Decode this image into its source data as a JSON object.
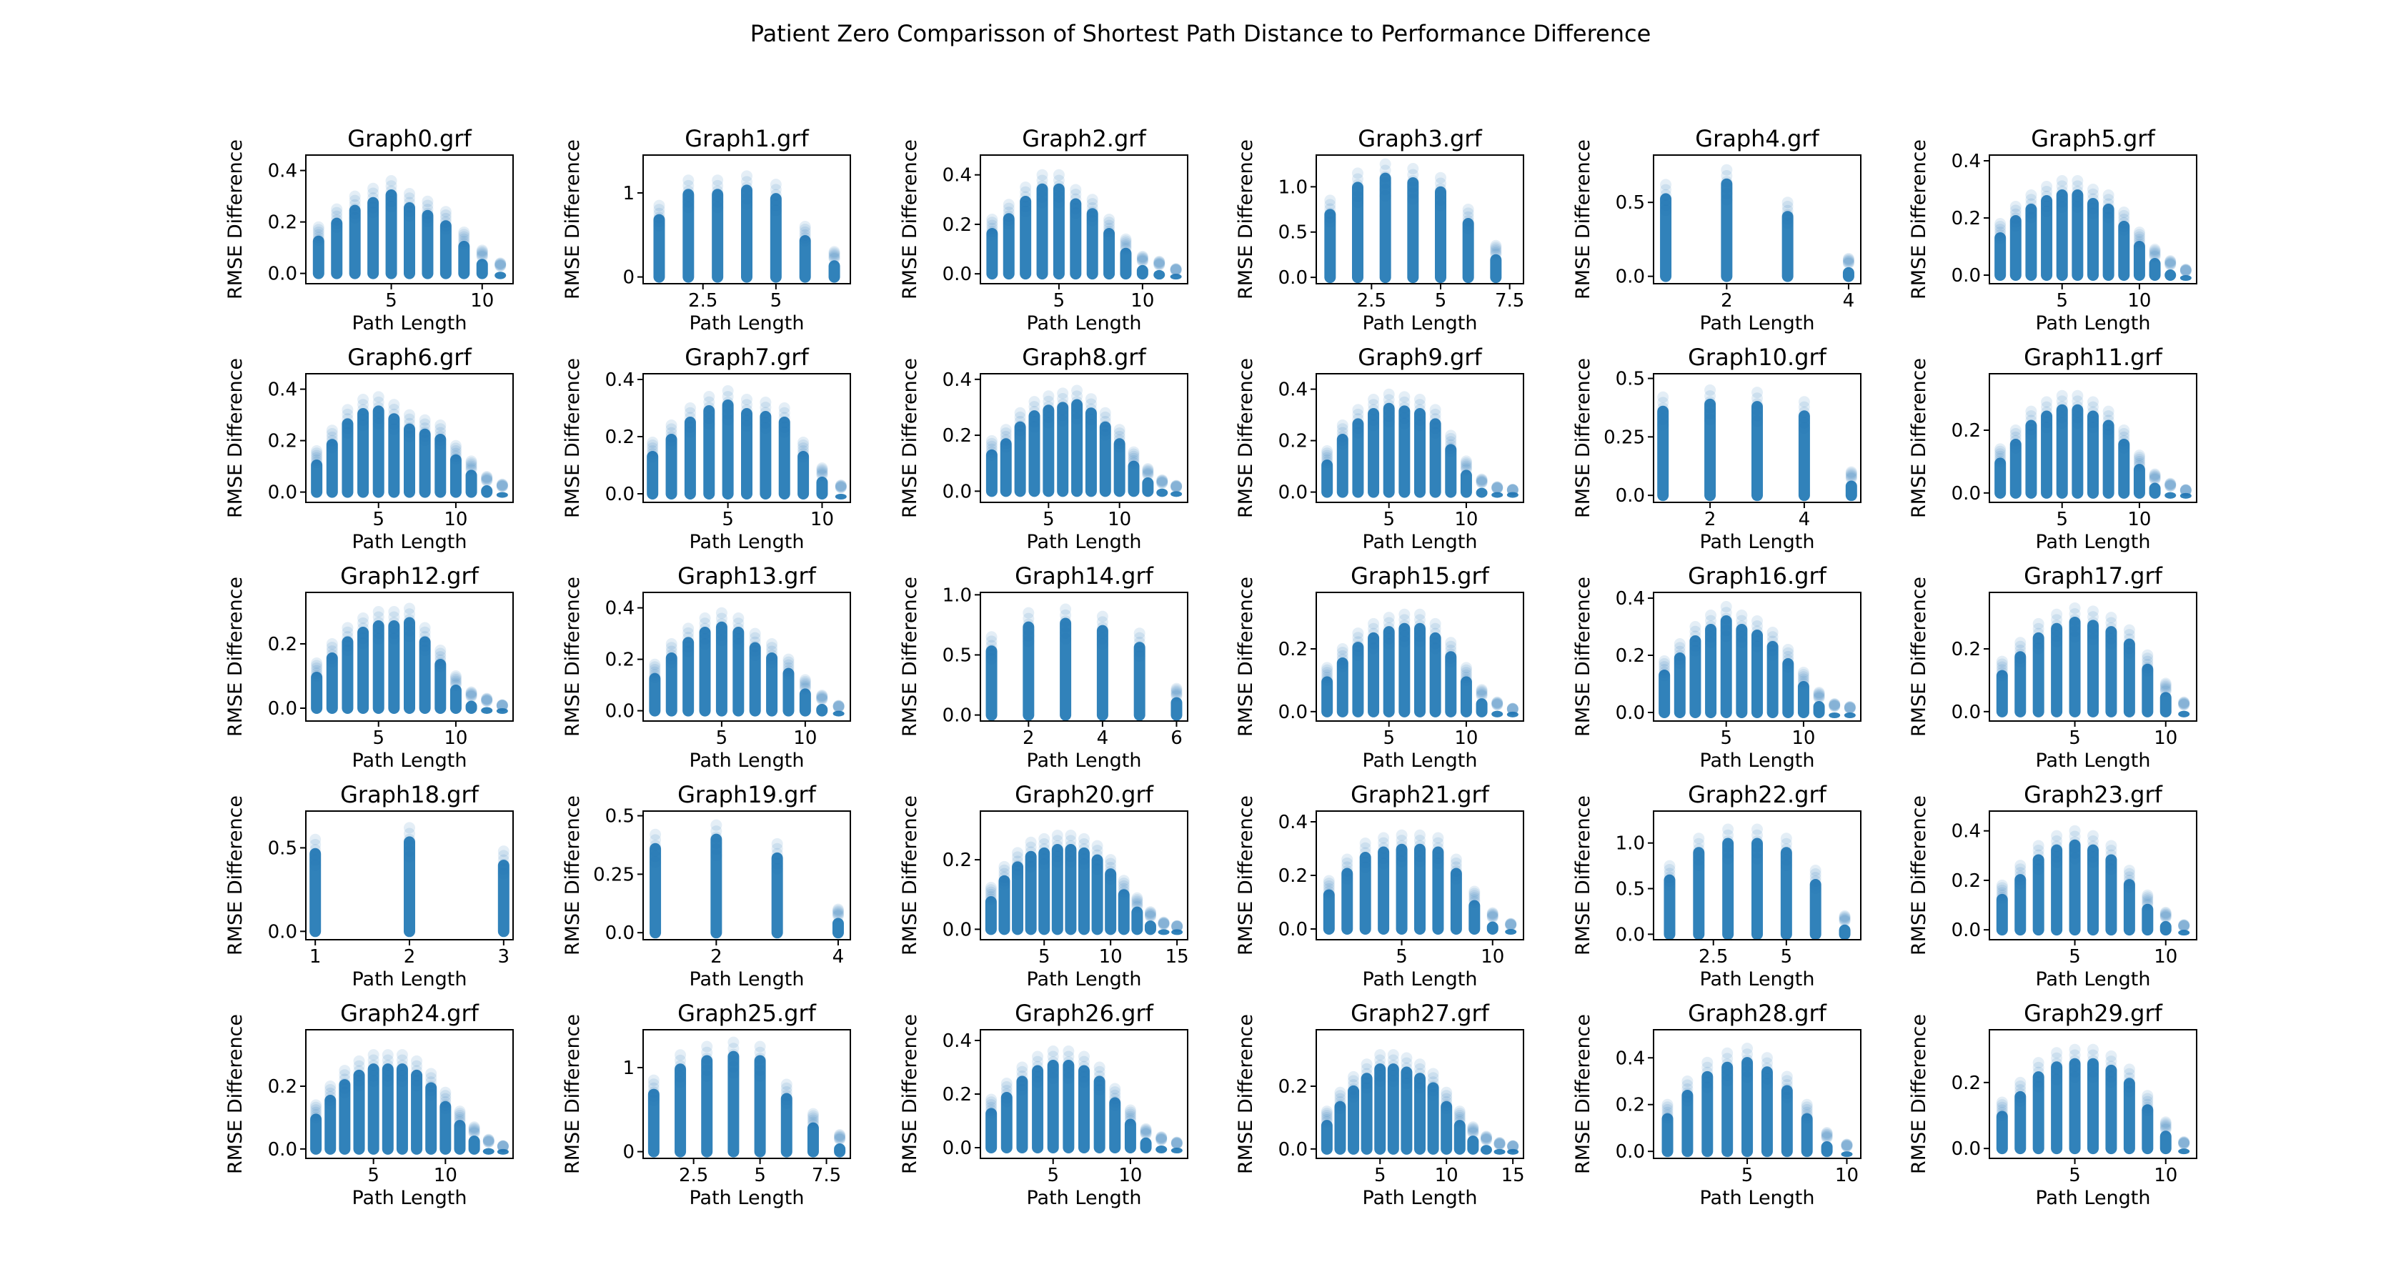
{
  "figure_title": "Patient Zero Comparisson of Shortest Path Distance to Performance Difference",
  "colors": {
    "marker": "#1f77b4",
    "axis": "#000000",
    "background": "#ffffff"
  },
  "chart_data": [
    {
      "type": "scatter",
      "title": "Graph0.grf",
      "xlabel": "Path Length",
      "ylabel": "RMSE Difference",
      "xlim": [
        0.3,
        11.7
      ],
      "ylim": [
        -0.04,
        0.46
      ],
      "xticks": [
        5,
        10
      ],
      "yticks": [
        0.0,
        0.2,
        0.4
      ],
      "x": [
        1,
        2,
        3,
        4,
        5,
        6,
        7,
        8,
        9,
        10,
        11
      ],
      "y_max": [
        0.18,
        0.25,
        0.3,
        0.33,
        0.36,
        0.31,
        0.28,
        0.24,
        0.16,
        0.09,
        0.04
      ]
    },
    {
      "type": "scatter",
      "title": "Graph1.grf",
      "xlabel": "Path Length",
      "ylabel": "RMSE Difference",
      "xlim": [
        0.45,
        7.55
      ],
      "ylim": [
        -0.08,
        1.45
      ],
      "xticks": [
        2.5,
        5.0
      ],
      "yticks": [
        0,
        1
      ],
      "x": [
        1,
        2,
        3,
        4,
        5,
        6,
        7
      ],
      "y_max": [
        0.85,
        1.15,
        1.15,
        1.2,
        1.1,
        0.6,
        0.3
      ]
    },
    {
      "type": "scatter",
      "title": "Graph2.grf",
      "xlabel": "Path Length",
      "ylabel": "RMSE Difference",
      "xlim": [
        0.3,
        12.7
      ],
      "ylim": [
        -0.04,
        0.48
      ],
      "xticks": [
        5,
        10
      ],
      "yticks": [
        0.0,
        0.2,
        0.4
      ],
      "x": [
        1,
        2,
        3,
        4,
        5,
        6,
        7,
        8,
        9,
        10,
        11,
        12
      ],
      "y_max": [
        0.22,
        0.28,
        0.35,
        0.4,
        0.4,
        0.34,
        0.3,
        0.22,
        0.14,
        0.07,
        0.05,
        0.02
      ]
    },
    {
      "type": "scatter",
      "title": "Graph3.grf",
      "xlabel": "Path Length",
      "ylabel": "RMSE Difference",
      "xlim": [
        0.5,
        8.0
      ],
      "ylim": [
        -0.07,
        1.35
      ],
      "xticks": [
        2.5,
        5.0,
        7.5
      ],
      "yticks": [
        0.0,
        0.5,
        1.0
      ],
      "x": [
        1,
        2,
        3,
        4,
        5,
        6,
        7
      ],
      "y_max": [
        0.85,
        1.15,
        1.25,
        1.2,
        1.1,
        0.75,
        0.35
      ]
    },
    {
      "type": "scatter",
      "title": "Graph4.grf",
      "xlabel": "Path Length",
      "ylabel": "RMSE Difference",
      "xlim": [
        0.8,
        4.2
      ],
      "ylim": [
        -0.05,
        0.82
      ],
      "xticks": [
        2,
        4
      ],
      "yticks": [
        0.0,
        0.5
      ],
      "x": [
        1,
        2,
        3,
        4
      ],
      "y_max": [
        0.62,
        0.72,
        0.5,
        0.12
      ]
    },
    {
      "type": "scatter",
      "title": "Graph5.grf",
      "xlabel": "Path Length",
      "ylabel": "RMSE Difference",
      "xlim": [
        0.3,
        13.7
      ],
      "ylim": [
        -0.03,
        0.42
      ],
      "xticks": [
        5,
        10
      ],
      "yticks": [
        0.0,
        0.2,
        0.4
      ],
      "x": [
        1,
        2,
        3,
        4,
        5,
        6,
        7,
        8,
        9,
        10,
        11,
        12,
        13
      ],
      "y_max": [
        0.18,
        0.24,
        0.28,
        0.31,
        0.33,
        0.33,
        0.3,
        0.28,
        0.22,
        0.15,
        0.09,
        0.05,
        0.02
      ]
    },
    {
      "type": "scatter",
      "title": "Graph6.grf",
      "xlabel": "Path Length",
      "ylabel": "RMSE Difference",
      "xlim": [
        0.3,
        13.7
      ],
      "ylim": [
        -0.04,
        0.46
      ],
      "xticks": [
        5,
        10
      ],
      "yticks": [
        0.0,
        0.2,
        0.4
      ],
      "x": [
        1,
        2,
        3,
        4,
        5,
        6,
        7,
        8,
        9,
        10,
        11,
        12,
        13
      ],
      "y_max": [
        0.16,
        0.24,
        0.32,
        0.36,
        0.37,
        0.34,
        0.3,
        0.28,
        0.26,
        0.18,
        0.12,
        0.06,
        0.03
      ]
    },
    {
      "type": "scatter",
      "title": "Graph7.grf",
      "xlabel": "Path Length",
      "ylabel": "RMSE Difference",
      "xlim": [
        0.5,
        11.5
      ],
      "ylim": [
        -0.03,
        0.42
      ],
      "xticks": [
        5,
        10
      ],
      "yticks": [
        0.0,
        0.2,
        0.4
      ],
      "x": [
        1,
        2,
        3,
        4,
        5,
        6,
        7,
        8,
        9,
        10,
        11
      ],
      "y_max": [
        0.18,
        0.24,
        0.3,
        0.34,
        0.36,
        0.33,
        0.32,
        0.3,
        0.18,
        0.09,
        0.03
      ]
    },
    {
      "type": "scatter",
      "title": "Graph8.grf",
      "xlabel": "Path Length",
      "ylabel": "RMSE Difference",
      "xlim": [
        0.2,
        14.8
      ],
      "ylim": [
        -0.04,
        0.42
      ],
      "xticks": [
        5,
        10
      ],
      "yticks": [
        0.0,
        0.2,
        0.4
      ],
      "x": [
        1,
        2,
        3,
        4,
        5,
        6,
        7,
        8,
        9,
        10,
        11,
        12,
        13,
        14
      ],
      "y_max": [
        0.18,
        0.22,
        0.28,
        0.32,
        0.34,
        0.35,
        0.36,
        0.33,
        0.28,
        0.22,
        0.14,
        0.08,
        0.04,
        0.02
      ]
    },
    {
      "type": "scatter",
      "title": "Graph9.grf",
      "xlabel": "Path Length",
      "ylabel": "RMSE Difference",
      "xlim": [
        0.3,
        13.7
      ],
      "ylim": [
        -0.04,
        0.46
      ],
      "xticks": [
        5,
        10
      ],
      "yticks": [
        0.0,
        0.2,
        0.4
      ],
      "x": [
        1,
        2,
        3,
        4,
        5,
        6,
        7,
        8,
        9,
        10,
        11,
        12,
        13
      ],
      "y_max": [
        0.16,
        0.26,
        0.32,
        0.36,
        0.38,
        0.37,
        0.36,
        0.32,
        0.22,
        0.12,
        0.05,
        0.02,
        0.01
      ]
    },
    {
      "type": "scatter",
      "title": "Graph10.grf",
      "xlabel": "Path Length",
      "ylabel": "RMSE Difference",
      "xlim": [
        0.8,
        5.2
      ],
      "ylim": [
        -0.03,
        0.52
      ],
      "xticks": [
        2,
        4
      ],
      "yticks": [
        0.0,
        0.25,
        0.5
      ],
      "x": [
        1,
        2,
        3,
        4,
        5
      ],
      "y_max": [
        0.42,
        0.45,
        0.44,
        0.4,
        0.1
      ]
    },
    {
      "type": "scatter",
      "title": "Graph11.grf",
      "xlabel": "Path Length",
      "ylabel": "RMSE Difference",
      "xlim": [
        0.3,
        13.7
      ],
      "ylim": [
        -0.03,
        0.38
      ],
      "xticks": [
        5,
        10
      ],
      "yticks": [
        0.0,
        0.2
      ],
      "x": [
        1,
        2,
        3,
        4,
        5,
        6,
        7,
        8,
        9,
        10,
        11,
        12,
        13
      ],
      "y_max": [
        0.14,
        0.2,
        0.26,
        0.29,
        0.31,
        0.31,
        0.29,
        0.26,
        0.2,
        0.12,
        0.06,
        0.03,
        0.01
      ]
    },
    {
      "type": "scatter",
      "title": "Graph12.grf",
      "xlabel": "Path Length",
      "ylabel": "RMSE Difference",
      "xlim": [
        0.3,
        13.7
      ],
      "ylim": [
        -0.04,
        0.36
      ],
      "xticks": [
        5,
        10
      ],
      "yticks": [
        0.0,
        0.2
      ],
      "x": [
        1,
        2,
        3,
        4,
        5,
        6,
        7,
        8,
        9,
        10,
        11,
        12,
        13
      ],
      "y_max": [
        0.14,
        0.2,
        0.25,
        0.28,
        0.3,
        0.3,
        0.31,
        0.25,
        0.18,
        0.1,
        0.05,
        0.03,
        0.01
      ]
    },
    {
      "type": "scatter",
      "title": "Graph13.grf",
      "xlabel": "Path Length",
      "ylabel": "RMSE Difference",
      "xlim": [
        0.3,
        12.7
      ],
      "ylim": [
        -0.04,
        0.46
      ],
      "xticks": [
        5,
        10
      ],
      "yticks": [
        0.0,
        0.2,
        0.4
      ],
      "x": [
        1,
        2,
        3,
        4,
        5,
        6,
        7,
        8,
        9,
        10,
        11,
        12
      ],
      "y_max": [
        0.18,
        0.26,
        0.32,
        0.36,
        0.38,
        0.36,
        0.3,
        0.26,
        0.2,
        0.12,
        0.06,
        0.02
      ]
    },
    {
      "type": "scatter",
      "title": "Graph14.grf",
      "xlabel": "Path Length",
      "ylabel": "RMSE Difference",
      "xlim": [
        0.7,
        6.3
      ],
      "ylim": [
        -0.05,
        1.02
      ],
      "xticks": [
        2,
        4,
        6
      ],
      "yticks": [
        0.0,
        0.5,
        1.0
      ],
      "x": [
        1,
        2,
        3,
        4,
        5,
        6
      ],
      "y_max": [
        0.65,
        0.85,
        0.88,
        0.82,
        0.68,
        0.22
      ]
    },
    {
      "type": "scatter",
      "title": "Graph15.grf",
      "xlabel": "Path Length",
      "ylabel": "RMSE Difference",
      "xlim": [
        0.3,
        13.7
      ],
      "ylim": [
        -0.03,
        0.38
      ],
      "xticks": [
        5,
        10
      ],
      "yticks": [
        0.0,
        0.2
      ],
      "x": [
        1,
        2,
        3,
        4,
        5,
        6,
        7,
        8,
        9,
        10,
        11,
        12,
        13
      ],
      "y_max": [
        0.14,
        0.2,
        0.25,
        0.28,
        0.3,
        0.31,
        0.31,
        0.28,
        0.22,
        0.14,
        0.07,
        0.03,
        0.01
      ]
    },
    {
      "type": "scatter",
      "title": "Graph16.grf",
      "xlabel": "Path Length",
      "ylabel": "RMSE Difference",
      "xlim": [
        0.3,
        13.7
      ],
      "ylim": [
        -0.03,
        0.42
      ],
      "xticks": [
        5,
        10
      ],
      "yticks": [
        0.0,
        0.2,
        0.4
      ],
      "x": [
        1,
        2,
        3,
        4,
        5,
        6,
        7,
        8,
        9,
        10,
        11,
        12,
        13
      ],
      "y_max": [
        0.18,
        0.24,
        0.3,
        0.34,
        0.37,
        0.34,
        0.32,
        0.28,
        0.22,
        0.14,
        0.07,
        0.03,
        0.02
      ]
    },
    {
      "type": "scatter",
      "title": "Graph17.grf",
      "xlabel": "Path Length",
      "ylabel": "RMSE Difference",
      "xlim": [
        0.3,
        11.7
      ],
      "ylim": [
        -0.03,
        0.38
      ],
      "xticks": [
        5,
        10
      ],
      "yticks": [
        0.0,
        0.2
      ],
      "x": [
        1,
        2,
        3,
        4,
        5,
        6,
        7,
        8,
        9,
        10,
        11
      ],
      "y_max": [
        0.16,
        0.22,
        0.28,
        0.31,
        0.33,
        0.32,
        0.3,
        0.26,
        0.18,
        0.09,
        0.03
      ]
    },
    {
      "type": "scatter",
      "title": "Graph18.grf",
      "xlabel": "Path Length",
      "ylabel": "RMSE Difference",
      "xlim": [
        0.9,
        3.1
      ],
      "ylim": [
        -0.05,
        0.72
      ],
      "xticks": [
        1,
        2,
        3
      ],
      "yticks": [
        0.0,
        0.5
      ],
      "x": [
        1,
        2,
        3
      ],
      "y_max": [
        0.55,
        0.62,
        0.48
      ]
    },
    {
      "type": "scatter",
      "title": "Graph19.grf",
      "xlabel": "Path Length",
      "ylabel": "RMSE Difference",
      "xlim": [
        0.8,
        4.2
      ],
      "ylim": [
        -0.03,
        0.52
      ],
      "xticks": [
        2,
        4
      ],
      "yticks": [
        0.0,
        0.25,
        0.5
      ],
      "x": [
        1,
        2,
        3,
        4
      ],
      "y_max": [
        0.42,
        0.46,
        0.38,
        0.1
      ]
    },
    {
      "type": "scatter",
      "title": "Graph20.grf",
      "xlabel": "Path Length",
      "ylabel": "RMSE Difference",
      "xlim": [
        0.2,
        15.8
      ],
      "ylim": [
        -0.03,
        0.34
      ],
      "xticks": [
        5,
        10,
        15
      ],
      "yticks": [
        0.0,
        0.2
      ],
      "x": [
        1,
        2,
        3,
        4,
        5,
        6,
        7,
        8,
        9,
        10,
        11,
        12,
        13,
        14,
        15
      ],
      "y_max": [
        0.12,
        0.18,
        0.22,
        0.25,
        0.26,
        0.27,
        0.27,
        0.26,
        0.24,
        0.2,
        0.14,
        0.09,
        0.05,
        0.02,
        0.01
      ]
    },
    {
      "type": "scatter",
      "title": "Graph21.grf",
      "xlabel": "Path Length",
      "ylabel": "RMSE Difference",
      "xlim": [
        0.3,
        11.7
      ],
      "ylim": [
        -0.04,
        0.44
      ],
      "xticks": [
        5,
        10
      ],
      "yticks": [
        0.0,
        0.2,
        0.4
      ],
      "x": [
        1,
        2,
        3,
        4,
        5,
        6,
        7,
        8,
        9,
        10,
        11
      ],
      "y_max": [
        0.18,
        0.26,
        0.32,
        0.34,
        0.35,
        0.35,
        0.34,
        0.26,
        0.14,
        0.06,
        0.02
      ]
    },
    {
      "type": "scatter",
      "title": "Graph22.grf",
      "xlabel": "Path Length",
      "ylabel": "RMSE Difference",
      "xlim": [
        0.45,
        7.55
      ],
      "ylim": [
        -0.06,
        1.35
      ],
      "xticks": [
        2.5,
        5.0
      ],
      "yticks": [
        0.0,
        0.5,
        1.0
      ],
      "x": [
        1,
        2,
        3,
        4,
        5,
        6,
        7
      ],
      "y_max": [
        0.75,
        1.05,
        1.15,
        1.15,
        1.05,
        0.7,
        0.2
      ]
    },
    {
      "type": "scatter",
      "title": "Graph23.grf",
      "xlabel": "Path Length",
      "ylabel": "RMSE Difference",
      "xlim": [
        0.3,
        11.7
      ],
      "ylim": [
        -0.04,
        0.48
      ],
      "xticks": [
        5,
        10
      ],
      "yticks": [
        0.0,
        0.2,
        0.4
      ],
      "x": [
        1,
        2,
        3,
        4,
        5,
        6,
        7,
        8,
        9,
        10,
        11
      ],
      "y_max": [
        0.18,
        0.26,
        0.34,
        0.38,
        0.4,
        0.38,
        0.34,
        0.24,
        0.14,
        0.07,
        0.02
      ]
    },
    {
      "type": "scatter",
      "title": "Graph24.grf",
      "xlabel": "Path Length",
      "ylabel": "RMSE Difference",
      "xlim": [
        0.3,
        14.7
      ],
      "ylim": [
        -0.03,
        0.38
      ],
      "xticks": [
        5,
        10
      ],
      "yticks": [
        0.0,
        0.2
      ],
      "x": [
        1,
        2,
        3,
        4,
        5,
        6,
        7,
        8,
        9,
        10,
        11,
        12,
        13,
        14
      ],
      "y_max": [
        0.14,
        0.2,
        0.25,
        0.28,
        0.3,
        0.3,
        0.3,
        0.28,
        0.24,
        0.18,
        0.12,
        0.07,
        0.03,
        0.01
      ]
    },
    {
      "type": "scatter",
      "title": "Graph25.grf",
      "xlabel": "Path Length",
      "ylabel": "RMSE Difference",
      "xlim": [
        0.6,
        8.4
      ],
      "ylim": [
        -0.08,
        1.45
      ],
      "xticks": [
        2.5,
        5.0,
        7.5
      ],
      "yticks": [
        0,
        1
      ],
      "x": [
        1,
        2,
        3,
        4,
        5,
        6,
        7,
        8
      ],
      "y_max": [
        0.85,
        1.15,
        1.25,
        1.3,
        1.25,
        0.8,
        0.45,
        0.2
      ]
    },
    {
      "type": "scatter",
      "title": "Graph26.grf",
      "xlabel": "Path Length",
      "ylabel": "RMSE Difference",
      "xlim": [
        0.3,
        13.7
      ],
      "ylim": [
        -0.04,
        0.44
      ],
      "xticks": [
        5,
        10
      ],
      "yticks": [
        0.0,
        0.2,
        0.4
      ],
      "x": [
        1,
        2,
        3,
        4,
        5,
        6,
        7,
        8,
        9,
        10,
        11,
        12,
        13
      ],
      "y_max": [
        0.18,
        0.24,
        0.3,
        0.34,
        0.36,
        0.36,
        0.34,
        0.3,
        0.22,
        0.14,
        0.07,
        0.04,
        0.02
      ]
    },
    {
      "type": "scatter",
      "title": "Graph27.grf",
      "xlabel": "Path Length",
      "ylabel": "RMSE Difference",
      "xlim": [
        0.2,
        15.8
      ],
      "ylim": [
        -0.03,
        0.38
      ],
      "xticks": [
        5,
        10,
        15
      ],
      "yticks": [
        0.0,
        0.2
      ],
      "x": [
        1,
        2,
        3,
        4,
        5,
        6,
        7,
        8,
        9,
        10,
        11,
        12,
        13,
        14,
        15
      ],
      "y_max": [
        0.12,
        0.18,
        0.23,
        0.27,
        0.3,
        0.3,
        0.29,
        0.27,
        0.24,
        0.18,
        0.12,
        0.07,
        0.04,
        0.02,
        0.01
      ]
    },
    {
      "type": "scatter",
      "title": "Graph28.grf",
      "xlabel": "Path Length",
      "ylabel": "RMSE Difference",
      "xlim": [
        0.3,
        10.7
      ],
      "ylim": [
        -0.03,
        0.52
      ],
      "xticks": [
        5,
        10
      ],
      "yticks": [
        0.0,
        0.2,
        0.4
      ],
      "x": [
        1,
        2,
        3,
        4,
        5,
        6,
        7,
        8,
        9,
        10
      ],
      "y_max": [
        0.2,
        0.3,
        0.38,
        0.42,
        0.44,
        0.4,
        0.32,
        0.2,
        0.08,
        0.03
      ]
    },
    {
      "type": "scatter",
      "title": "Graph29.grf",
      "xlabel": "Path Length",
      "ylabel": "RMSE Difference",
      "xlim": [
        0.3,
        11.7
      ],
      "ylim": [
        -0.03,
        0.36
      ],
      "xticks": [
        5,
        10
      ],
      "yticks": [
        0.0,
        0.2
      ],
      "x": [
        1,
        2,
        3,
        4,
        5,
        6,
        7,
        8,
        9,
        10,
        11
      ],
      "y_max": [
        0.14,
        0.2,
        0.26,
        0.29,
        0.3,
        0.3,
        0.28,
        0.24,
        0.16,
        0.08,
        0.02
      ]
    }
  ]
}
